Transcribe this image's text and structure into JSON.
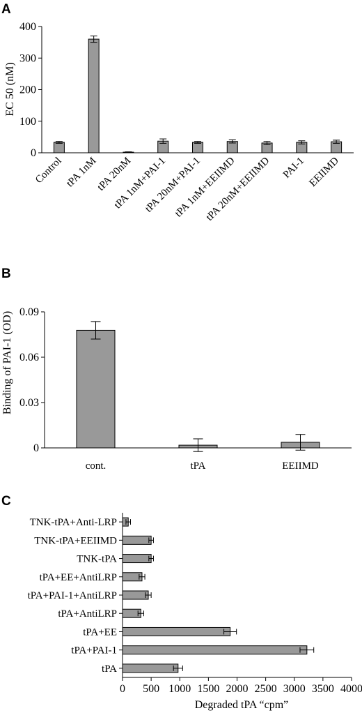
{
  "chart_data": [
    {
      "panel": "A",
      "type": "bar",
      "title": "",
      "xlabel": "",
      "ylabel": "EC 50 (nM)",
      "ylim": [
        0,
        400
      ],
      "yticks": [
        "0",
        "100",
        "200",
        "300",
        "400"
      ],
      "categories": [
        "Control",
        "tPA 1nM",
        "tPA 20nM",
        "tPA 1nM+PAI-1",
        "tPA 20nM+PAI-1",
        "tPA 1nM+EEIIMD",
        "tPA 20nM+EEIIMD",
        "PAI-1",
        "EEIIMD"
      ],
      "values": [
        33,
        360,
        2,
        37,
        33,
        36,
        31,
        33,
        35
      ],
      "errors": [
        3,
        10,
        1,
        7,
        3,
        5,
        5,
        5,
        5
      ],
      "bar_color": "#999999",
      "grid": false
    },
    {
      "panel": "B",
      "type": "bar",
      "title": "",
      "xlabel": "",
      "ylabel": "Binding of PAI-1 (OD)",
      "ylim": [
        0,
        0.09
      ],
      "yticks": [
        "0",
        "0.03",
        "0.06",
        "0.09"
      ],
      "categories": [
        "cont.",
        "tPA",
        "EEIIMD"
      ],
      "values": [
        0.0778,
        0.0018,
        0.0037
      ],
      "errors": [
        0.0058,
        0.0042,
        0.0052
      ],
      "bar_color": "#999999",
      "grid": false
    },
    {
      "panel": "C",
      "type": "bar",
      "orientation": "horizontal",
      "title": "",
      "xlabel": "Degraded tPA “cpm”",
      "ylabel": "",
      "xlim": [
        0,
        4000
      ],
      "xticks": [
        "0",
        "500",
        "1000",
        "1500",
        "2000",
        "2500",
        "3000",
        "3500",
        "4000"
      ],
      "categories": [
        "TNK-tPA+Anti-LRP",
        "TNK-tPA+EEIIMD",
        "TNK-tPA",
        "tPA+EE+AntiLRP",
        "tPA+PAI-1+AntiLRP",
        "tPA+AntiLRP",
        "tPA+EE",
        "tPA+PAI-1",
        "tPA"
      ],
      "values": [
        100,
        500,
        500,
        340,
        450,
        320,
        1880,
        3220,
        970
      ],
      "errors": [
        40,
        40,
        40,
        50,
        50,
        50,
        110,
        120,
        80
      ],
      "bar_color": "#999999",
      "grid": false
    }
  ]
}
